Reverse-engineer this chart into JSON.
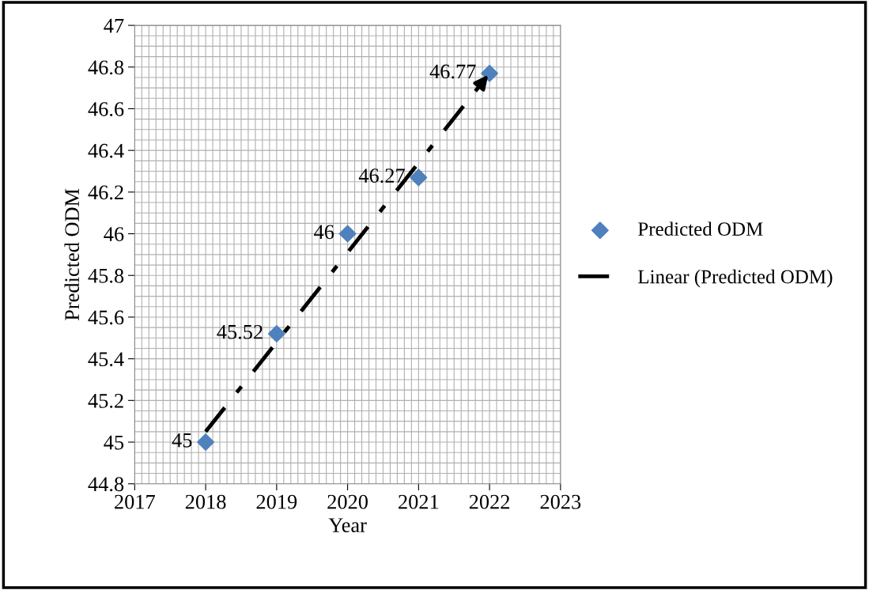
{
  "chart_data": {
    "type": "scatter",
    "xlabel": "Year",
    "ylabel": "Predicted ODM",
    "x": [
      2018,
      2019,
      2020,
      2021,
      2022
    ],
    "series": [
      {
        "name": "Predicted ODM",
        "color": "#4f81bd",
        "values": [
          45,
          45.52,
          46,
          46.27,
          46.77
        ],
        "value_labels": [
          "45",
          "45.52",
          "46",
          "46.27",
          "46.77"
        ],
        "marker": "diamond"
      },
      {
        "name": "Linear (Predicted ODM)",
        "type": "line",
        "color": "#000000",
        "x": [
          2018,
          2022
        ],
        "values": [
          45.05,
          46.77
        ],
        "line_style": "dashed",
        "marker": "none"
      }
    ],
    "xlim": [
      2017,
      2023
    ],
    "xticks": [
      2017,
      2018,
      2019,
      2020,
      2021,
      2022,
      2023
    ],
    "ylim": [
      44.8,
      47
    ],
    "yticks": [
      44.8,
      45,
      45.2,
      45.4,
      45.6,
      45.8,
      46,
      46.2,
      46.4,
      46.6,
      46.8,
      47
    ],
    "grid": true,
    "legend": "right"
  }
}
